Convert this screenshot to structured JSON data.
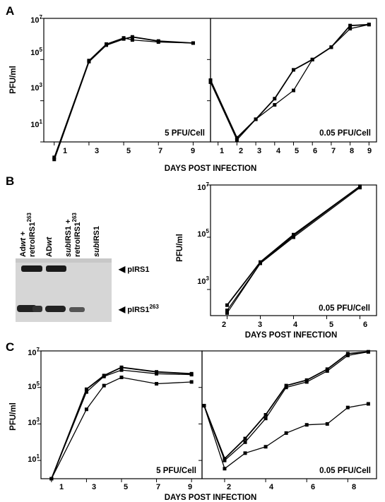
{
  "panels": {
    "A": "A",
    "B": "B",
    "C": "C"
  },
  "text": {
    "ylabel": "PFU/ml",
    "xlabel": "DAYS POST INFECTION",
    "moi_high": "5 PFU/Cell",
    "moi_low": "0.05 PFU/Cell"
  },
  "ticks": {
    "y_exp": [
      "1",
      "3",
      "5",
      "7"
    ],
    "y_base": "10",
    "x_odd": [
      "1",
      "3",
      "5",
      "7",
      "9"
    ],
    "x_1to9": [
      "1",
      "2",
      "3",
      "4",
      "5",
      "6",
      "7",
      "8",
      "9"
    ],
    "x_2to6": [
      "2",
      "3",
      "4",
      "5",
      "6"
    ],
    "x_even": [
      "2",
      "4",
      "6",
      "8"
    ]
  },
  "gel": {
    "lane1_line1": "Ad",
    "lane1_line1_italic": "wt",
    "lane1_line1_suffix": " +",
    "lane1_line2": "retroIRS1",
    "lane1_line2_sup": "263",
    "lane2": "AD",
    "lane2_italic": "wt",
    "lane3_italic": "sub",
    "lane3_line1": "IRS1 +",
    "lane3_line2": "retroIRS1",
    "lane3_line2_sup": "263",
    "lane4_italic": "sub",
    "lane4": "IRS1",
    "band1": "pIRS1",
    "band2": "pIRS1",
    "band2_sup": "263"
  },
  "chart_data": [
    {
      "id": "A-left",
      "type": "line",
      "log_y": true,
      "xlim": [
        0.4,
        10
      ],
      "ylim": [
        1,
        7
      ],
      "series": [
        {
          "x": [
            1,
            3,
            4,
            5,
            5.5,
            7,
            9
          ],
          "y": [
            0.15,
            4.9,
            5.7,
            6.0,
            6.1,
            5.9,
            5.8
          ]
        },
        {
          "x": [
            1,
            3,
            4,
            5,
            5.5,
            7,
            9
          ],
          "y": [
            0.25,
            4.95,
            5.75,
            6.05,
            5.95,
            5.85,
            5.8
          ]
        }
      ]
    },
    {
      "id": "A-right",
      "type": "line",
      "log_y": true,
      "xlim": [
        0.6,
        9.4
      ],
      "ylim": [
        1,
        7
      ],
      "series": [
        {
          "x": [
            0.6,
            2,
            3,
            4,
            5,
            6,
            7,
            8,
            9
          ],
          "y": [
            4.0,
            1.2,
            2.1,
            3.1,
            4.5,
            5.0,
            5.6,
            6.65,
            6.7
          ]
        },
        {
          "x": [
            0.6,
            2,
            3,
            4,
            5,
            6,
            7,
            8,
            9
          ],
          "y": [
            3.9,
            1.1,
            2.1,
            2.8,
            3.5,
            5.0,
            5.6,
            6.5,
            6.7
          ]
        }
      ]
    },
    {
      "id": "B-right",
      "type": "line",
      "log_y": true,
      "xlim": [
        1.5,
        6.5
      ],
      "ylim": [
        2,
        7
      ],
      "series": [
        {
          "x": [
            2,
            3,
            4,
            6
          ],
          "y": [
            2.4,
            4.05,
            5.1,
            6.95
          ]
        },
        {
          "x": [
            2,
            3,
            4,
            6
          ],
          "y": [
            2.2,
            4.0,
            5.05,
            6.95
          ]
        },
        {
          "x": [
            2,
            3,
            4,
            6
          ],
          "y": [
            2.1,
            4.0,
            5.0,
            6.9
          ]
        }
      ]
    },
    {
      "id": "C-left",
      "type": "line",
      "log_y": true,
      "xlim": [
        0.4,
        9.6
      ],
      "ylim": [
        0,
        7
      ],
      "series": [
        {
          "x": [
            1,
            3,
            4,
            5,
            7,
            9
          ],
          "y": [
            0,
            4.9,
            5.65,
            6.1,
            5.85,
            5.75
          ]
        },
        {
          "x": [
            1,
            3,
            4,
            5,
            7,
            9
          ],
          "y": [
            0,
            4.75,
            5.6,
            5.95,
            5.75,
            5.7
          ]
        },
        {
          "x": [
            1,
            3,
            4,
            5,
            7,
            9
          ],
          "y": [
            0,
            3.8,
            5.1,
            5.55,
            5.2,
            5.3
          ]
        }
      ]
    },
    {
      "id": "C-right",
      "type": "line",
      "log_y": true,
      "xlim": [
        0.9,
        9.4
      ],
      "ylim": [
        0,
        7
      ],
      "series": [
        {
          "x": [
            1,
            2,
            3,
            4,
            5,
            6,
            7,
            8,
            9
          ],
          "y": [
            4.0,
            1.1,
            2.2,
            3.5,
            5.1,
            5.4,
            6.0,
            6.85,
            6.95
          ]
        },
        {
          "x": [
            1,
            2,
            3,
            4,
            5,
            6,
            7,
            8,
            9
          ],
          "y": [
            4.0,
            1.0,
            2.0,
            3.3,
            5.0,
            5.3,
            5.9,
            6.75,
            6.95
          ]
        },
        {
          "x": [
            1,
            2,
            3,
            4,
            5,
            6,
            7,
            8,
            9
          ],
          "y": [
            4.0,
            0.55,
            1.4,
            1.75,
            2.5,
            2.95,
            3.0,
            3.9,
            4.1
          ]
        }
      ]
    }
  ]
}
